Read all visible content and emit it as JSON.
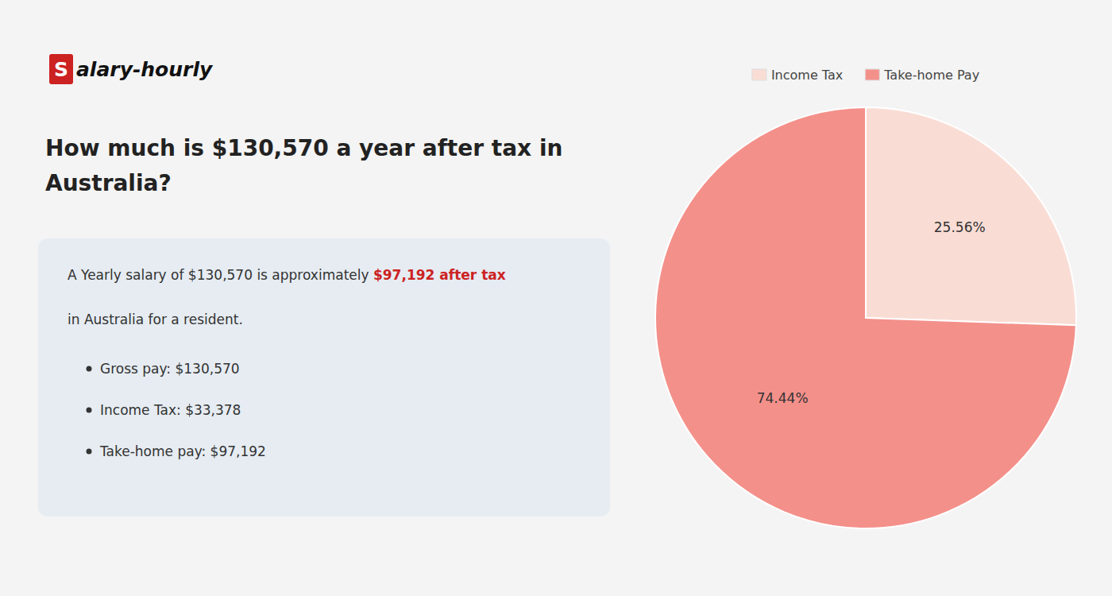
{
  "chart_data": {
    "type": "pie",
    "brand": [
      "S",
      "alary-hourly"
    ],
    "brand_color": "#cc2222",
    "title_lines": [
      "How much is $130,570 a year after tax in",
      "Australia?"
    ],
    "summary": "A Yearly salary of $130,570 is approximately ",
    "summary_highlight": "$97,192 after tax",
    "summary_highlight_color": "#cc2222",
    "summary_line2": "in Australia for a resident.",
    "bullets": [
      "Gross pay: $130,570",
      "Income Tax: $33,378",
      "Take-home pay: $97,192"
    ],
    "categories": [
      "Income Tax",
      "Take-home Pay"
    ],
    "values": [
      25.56,
      74.44
    ],
    "value_labels": [
      "25.56%",
      "74.44%"
    ],
    "colors": [
      "#f9ddd5",
      "#f4908a"
    ],
    "data_labels": true,
    "legend": "top"
  }
}
